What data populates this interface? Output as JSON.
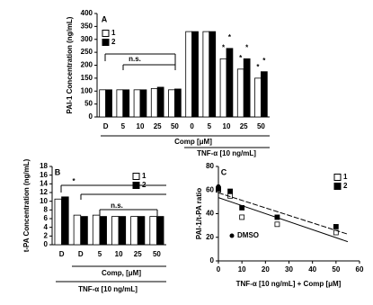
{
  "chart_data": [
    {
      "type": "bar",
      "ylabel": "PAI-1 Concentration (ng/mL)",
      "xlabel": "Comp [μM]",
      "group_label": "TNF-α [10 ng/mL]",
      "categories": [
        "D",
        "5",
        "10",
        "25",
        "50",
        "0",
        "5",
        "10",
        "25",
        "50"
      ],
      "series": [
        {
          "name": "1",
          "color": "#ffffff",
          "values": [
            105,
            105,
            105,
            110,
            105,
            330,
            330,
            225,
            185,
            150
          ]
        },
        {
          "name": "2",
          "color": "#000000",
          "values": [
            105,
            105,
            105,
            115,
            108,
            330,
            330,
            265,
            225,
            175
          ]
        }
      ],
      "ylim": [
        0,
        400
      ],
      "yticks": [
        0,
        50,
        100,
        150,
        200,
        250,
        300,
        350,
        400
      ],
      "legend": "upper-left",
      "annotations": [
        "A",
        "n.s."
      ],
      "significance": [
        "*",
        "*",
        "*",
        "*",
        "*",
        "*"
      ]
    },
    {
      "type": "bar",
      "ylabel": "t-PA Concentration (ng/mL)",
      "xlabel": "Comp, [μM]",
      "group_label": "TNF-α [10 ng/mL]",
      "categories": [
        "D",
        "D",
        "5",
        "10",
        "25",
        "50"
      ],
      "series": [
        {
          "name": "1",
          "color": "#ffffff",
          "values": [
            10.5,
            6.8,
            6.8,
            6.5,
            6.5,
            6.5
          ]
        },
        {
          "name": "2",
          "color": "#000000",
          "values": [
            11,
            6.5,
            6.5,
            6.5,
            6.5,
            6.5
          ]
        }
      ],
      "ylim": [
        0,
        18
      ],
      "yticks": [
        0,
        2,
        4,
        6,
        8,
        10,
        12,
        14,
        16,
        18
      ],
      "legend": "upper-right",
      "annotations": [
        "B",
        "*",
        "n.s."
      ]
    },
    {
      "type": "scatter",
      "ylabel": "PAI-1/t-PA ratio",
      "xlabel": "TNF-α [10 ng/mL] + Comp [μM]",
      "series": [
        {
          "name": "1",
          "color": "#ffffff",
          "marker": "square",
          "x": [
            0,
            5,
            10,
            25,
            50
          ],
          "y": [
            60,
            55,
            37,
            31,
            24
          ]
        },
        {
          "name": "2",
          "color": "#000000",
          "marker": "square",
          "x": [
            0,
            5,
            10,
            25,
            50
          ],
          "y": [
            61,
            59,
            45,
            37,
            29
          ]
        },
        {
          "name": "DMSO",
          "color": "#000000",
          "marker": "circle",
          "x": [
            0
          ],
          "y": [
            63
          ]
        }
      ],
      "xlim": [
        0,
        60
      ],
      "xticks": [
        0,
        10,
        20,
        30,
        40,
        50,
        60
      ],
      "ylim": [
        0,
        80
      ],
      "yticks": [
        0,
        20,
        40,
        60,
        80
      ],
      "trendline": true,
      "legend": "upper-right",
      "annotations": [
        "C"
      ]
    }
  ]
}
